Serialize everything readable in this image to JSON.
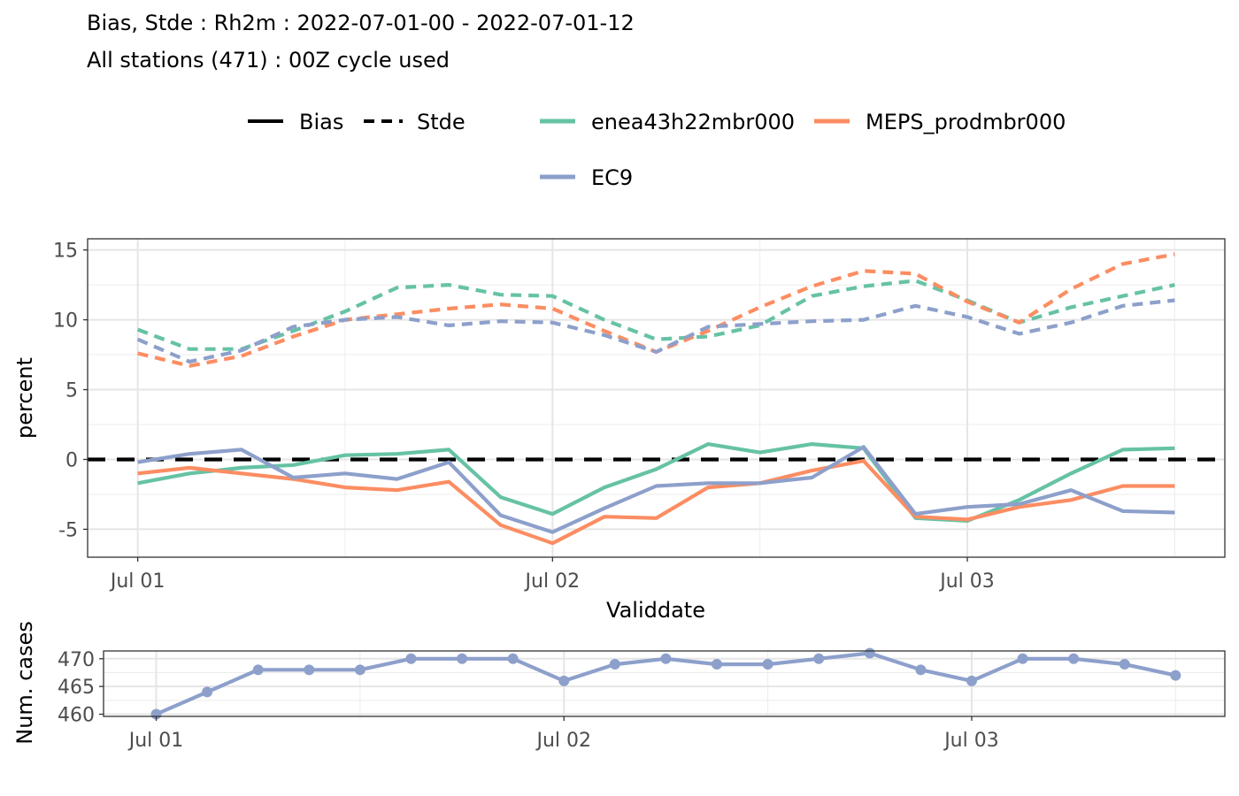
{
  "chart_data": [
    {
      "type": "line",
      "title": "Bias, Stde : Rh2m : 2022-07-01-00 - 2022-07-01-12",
      "subtitle": "All stations (471) : 00Z cycle used",
      "xlabel": "Validdate",
      "ylabel": "percent",
      "x_tick_labels": [
        "Jul 01",
        "Jul 02",
        "Jul 03"
      ],
      "x_tick_positions": [
        0,
        24,
        48
      ],
      "y_ticks": [
        -5,
        0,
        5,
        10,
        15
      ],
      "xlim": [
        -2.9,
        62.9
      ],
      "ylim": [
        -7,
        15.8
      ],
      "grid": true,
      "legend_position": "top",
      "x_unit": "hours since Jul 01 00Z",
      "x": [
        0,
        3,
        6,
        9,
        12,
        15,
        18,
        21,
        24,
        27,
        30,
        33,
        36,
        39,
        42,
        45,
        48,
        51,
        54,
        57,
        60
      ],
      "line_types": [
        {
          "name": "Bias",
          "dash": "solid"
        },
        {
          "name": "Stde",
          "dash": "dashed"
        }
      ],
      "reference_line": {
        "y": 0,
        "color": "#000000",
        "dash": "dashed"
      },
      "series": [
        {
          "name": "enea43h22mbr000",
          "color": "#66C2A5",
          "bias": [
            -1.7,
            -1.0,
            -0.6,
            -0.4,
            0.3,
            0.4,
            0.7,
            -2.7,
            -3.9,
            -2.0,
            -0.7,
            1.1,
            0.5,
            1.1,
            0.8,
            -4.2,
            -4.4,
            -2.9,
            -1.0,
            0.7,
            0.8
          ],
          "stde": [
            9.3,
            7.9,
            7.9,
            9.2,
            10.6,
            12.3,
            12.5,
            11.8,
            11.7,
            10.0,
            8.6,
            8.8,
            9.6,
            11.7,
            12.4,
            12.8,
            11.4,
            9.8,
            10.9,
            11.7,
            12.5
          ]
        },
        {
          "name": "MEPS_prodmbr000",
          "color": "#FC8D62",
          "bias": [
            -1.0,
            -0.6,
            -1.0,
            -1.4,
            -2.0,
            -2.2,
            -1.6,
            -4.7,
            -6.0,
            -4.1,
            -4.2,
            -2.0,
            -1.7,
            -0.8,
            -0.1,
            -4.1,
            -4.3,
            -3.4,
            -2.9,
            -1.9,
            -1.9
          ],
          "stde": [
            7.6,
            6.7,
            7.4,
            8.8,
            10.0,
            10.4,
            10.8,
            11.1,
            10.8,
            9.2,
            7.7,
            9.2,
            10.9,
            12.4,
            13.5,
            13.3,
            11.3,
            9.8,
            12.2,
            14.0,
            14.7
          ]
        },
        {
          "name": "EC9",
          "color": "#8DA0CB",
          "bias": [
            -0.2,
            0.4,
            0.7,
            -1.3,
            -1.0,
            -1.4,
            -0.2,
            -4.0,
            -5.2,
            -3.5,
            -1.9,
            -1.7,
            -1.7,
            -1.3,
            0.9,
            -3.9,
            -3.4,
            -3.2,
            -2.2,
            -3.7,
            -3.8
          ],
          "stde": [
            8.6,
            7.0,
            7.8,
            9.5,
            10.0,
            10.2,
            9.6,
            9.9,
            9.8,
            8.9,
            7.7,
            9.5,
            9.7,
            9.9,
            10.0,
            11.0,
            10.2,
            9.0,
            9.8,
            11.0,
            11.4
          ]
        }
      ]
    },
    {
      "type": "line",
      "xlabel": "",
      "ylabel": "Num. cases",
      "x_tick_labels": [
        "Jul 01",
        "Jul 02",
        "Jul 03"
      ],
      "x_tick_positions": [
        0,
        24,
        48
      ],
      "y_ticks": [
        460,
        465,
        470
      ],
      "xlim": [
        -3.1,
        62.9
      ],
      "ylim": [
        459.6,
        471.4
      ],
      "grid": true,
      "markers": true,
      "x_unit": "hours since Jul 01 00Z",
      "x": [
        0,
        3,
        6,
        9,
        12,
        15,
        18,
        21,
        24,
        27,
        30,
        33,
        36,
        39,
        42,
        45,
        48,
        51,
        54,
        57,
        60
      ],
      "series": [
        {
          "name": "EC9",
          "color": "#8DA0CB",
          "values": [
            460,
            464,
            468,
            468,
            468,
            470,
            470,
            470,
            466,
            469,
            470,
            469,
            469,
            470,
            471,
            468,
            466,
            470,
            470,
            469,
            467
          ]
        }
      ]
    }
  ],
  "legend": {
    "linetype_items": [
      {
        "label": "Bias",
        "dash": "solid"
      },
      {
        "label": "Stde",
        "dash": "dashed"
      }
    ],
    "color_items": [
      {
        "label": "enea43h22mbr000",
        "color": "#66C2A5"
      },
      {
        "label": "MEPS_prodmbr000",
        "color": "#FC8D62"
      },
      {
        "label": "EC9",
        "color": "#8DA0CB"
      }
    ]
  }
}
